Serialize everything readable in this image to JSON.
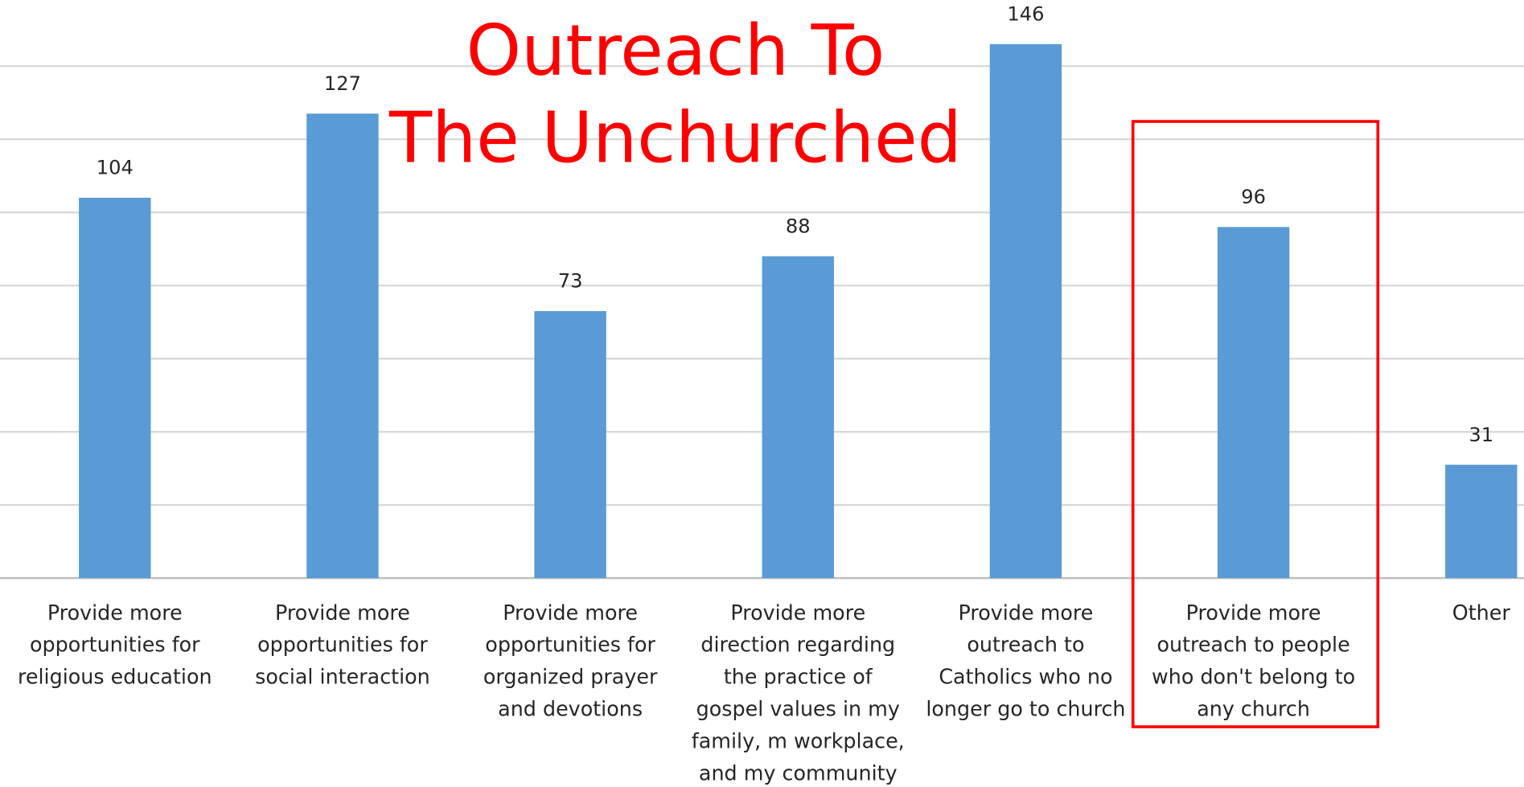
{
  "chart_data": {
    "type": "bar",
    "title": "Outreach To\nThe Unchurched",
    "categories": [
      "Provide more\nopportunities for\nreligious education",
      "Provide more\nopportunities for\nsocial interaction",
      "Provide more\nopportunities for\norganized prayer\nand devotions",
      "Provide more\ndirection regarding\nthe practice of\ngospel values in my\nfamily, m workplace,\nand my community",
      "Provide more\noutreach to\nCatholics who no\nlonger go to church",
      "Provide more\noutreach to people\nwho don't belong to\nany church",
      "Other"
    ],
    "values": [
      104,
      127,
      73,
      88,
      146,
      96,
      31
    ],
    "color": "#5b9bd5",
    "ylim": [
      0,
      140
    ],
    "yticks": [
      0,
      20,
      40,
      60,
      80,
      100,
      120,
      140
    ],
    "grid": true,
    "highlight": {
      "category": 5,
      "color": "#ff0000"
    }
  }
}
